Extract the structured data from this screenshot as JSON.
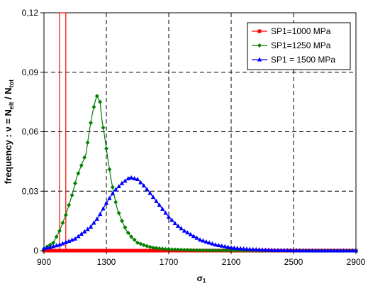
{
  "chart_data": {
    "type": "line",
    "title": "",
    "xlabel": "σ1",
    "ylabel": "frequency : ν = Nelt / Ntot",
    "xlim": [
      900,
      2900
    ],
    "ylim": [
      0,
      0.12
    ],
    "x_ticks": [
      900,
      1300,
      1700,
      2100,
      2500,
      2900
    ],
    "y_ticks": [
      0,
      0.03,
      0.06,
      0.09,
      0.12
    ],
    "x_tick_labels": [
      "900",
      "1300",
      "1700",
      "2100",
      "2500",
      "2900"
    ],
    "y_tick_labels": [
      "0",
      "0,03",
      "0,06",
      "0,09",
      "0,12"
    ],
    "grid": "dashed, both axes",
    "legend_position": "top-right",
    "series": [
      {
        "name": "SP1=1000 MPa",
        "color": "#ff0000",
        "marker": "square",
        "spike": {
          "x1": 1000,
          "x2": 1040,
          "y": 0.12
        },
        "x": [
          900,
          920,
          940,
          960,
          980,
          1000,
          1020,
          1040,
          1060,
          1080,
          1100,
          1200,
          1300,
          1400,
          1500,
          1600,
          1700,
          1800,
          1900,
          2000,
          2100,
          2200,
          2300,
          2400,
          2500,
          2600,
          2700,
          2800,
          2900
        ],
        "values": [
          0,
          0,
          0,
          0,
          0,
          0,
          0,
          0,
          0,
          0,
          0,
          0,
          0,
          0,
          0,
          0,
          0,
          0,
          0,
          0,
          0,
          0,
          0,
          0,
          0,
          0,
          0,
          0,
          0
        ]
      },
      {
        "name": "SP1=1250 MPa",
        "color": "#008000",
        "marker": "diamond",
        "x": [
          900,
          960,
          1000,
          1040,
          1080,
          1110,
          1140,
          1150,
          1170,
          1190,
          1210,
          1230,
          1240,
          1260,
          1270,
          1290,
          1310,
          1330,
          1350,
          1370,
          1400,
          1430,
          1460,
          1500,
          1550,
          1600,
          1650,
          1700,
          1800,
          1900,
          2000,
          2100,
          2300,
          2500,
          2700,
          2900
        ],
        "values": [
          0.001,
          0.004,
          0.01,
          0.018,
          0.028,
          0.037,
          0.043,
          0.045,
          0.049,
          0.06,
          0.069,
          0.076,
          0.078,
          0.075,
          0.067,
          0.057,
          0.046,
          0.036,
          0.028,
          0.021,
          0.015,
          0.01,
          0.007,
          0.004,
          0.0025,
          0.0015,
          0.001,
          0.0007,
          0.0004,
          0.0002,
          0.0001,
          0.0001,
          0,
          0,
          0,
          0
        ]
      },
      {
        "name": "SP1 = 1500 MPa",
        "color": "#0000ff",
        "marker": "triangle",
        "x": [
          900,
          1000,
          1100,
          1200,
          1250,
          1300,
          1350,
          1400,
          1450,
          1500,
          1550,
          1600,
          1650,
          1700,
          1750,
          1800,
          1900,
          2000,
          2100,
          2200,
          2300,
          2400,
          2500,
          2600,
          2700,
          2800,
          2900
        ],
        "values": [
          0.001,
          0.003,
          0.006,
          0.012,
          0.017,
          0.024,
          0.03,
          0.034,
          0.037,
          0.036,
          0.032,
          0.027,
          0.022,
          0.017,
          0.013,
          0.01,
          0.0055,
          0.003,
          0.0015,
          0.0008,
          0.0004,
          0.0002,
          0.0001,
          0,
          0,
          0,
          0
        ]
      }
    ]
  }
}
